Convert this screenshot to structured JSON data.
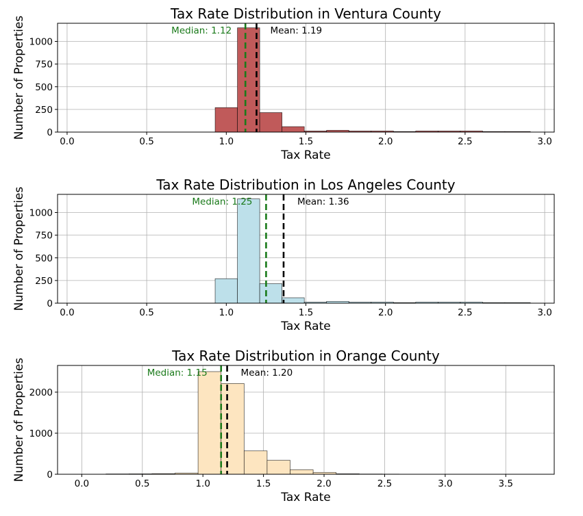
{
  "chart_data": [
    {
      "type": "bar",
      "title": "Tax Rate Distribution in Ventura County",
      "xlabel": "Tax Rate",
      "ylabel": "Number of Properties",
      "xlim": [
        -0.06,
        3.06
      ],
      "ylim": [
        0,
        1200
      ],
      "xticks": [
        0.0,
        0.5,
        1.0,
        1.5,
        2.0,
        2.5,
        3.0
      ],
      "xtick_labels": [
        "0.0",
        "0.5",
        "1.0",
        "1.5",
        "2.0",
        "2.5",
        "3.0"
      ],
      "yticks": [
        0,
        250,
        500,
        750,
        1000
      ],
      "ytick_labels": [
        "0",
        "250",
        "500",
        "750",
        "1000"
      ],
      "grid": true,
      "bar_color": "#c05a5a",
      "bins": [
        {
          "x0": 0.93,
          "x1": 1.07,
          "count": 270
        },
        {
          "x0": 1.07,
          "x1": 1.21,
          "count": 1150
        },
        {
          "x0": 1.21,
          "x1": 1.35,
          "count": 215
        },
        {
          "x0": 1.35,
          "x1": 1.49,
          "count": 60
        },
        {
          "x0": 1.49,
          "x1": 1.63,
          "count": 12
        },
        {
          "x0": 1.63,
          "x1": 1.77,
          "count": 20
        },
        {
          "x0": 1.77,
          "x1": 1.91,
          "count": 12
        },
        {
          "x0": 1.91,
          "x1": 2.05,
          "count": 12
        },
        {
          "x0": 2.05,
          "x1": 2.19,
          "count": 6
        },
        {
          "x0": 2.19,
          "x1": 2.33,
          "count": 12
        },
        {
          "x0": 2.33,
          "x1": 2.47,
          "count": 12
        },
        {
          "x0": 2.47,
          "x1": 2.61,
          "count": 12
        },
        {
          "x0": 2.61,
          "x1": 2.75,
          "count": 6
        },
        {
          "x0": 2.75,
          "x1": 2.91,
          "count": 6
        }
      ],
      "median": {
        "value": 1.12,
        "label": "Median: 1.12",
        "color": "#1a7a1a"
      },
      "mean": {
        "value": 1.19,
        "label": "Mean: 1.19",
        "color": "#000000"
      }
    },
    {
      "type": "bar",
      "title": "Tax Rate Distribution in Los Angeles County",
      "xlabel": "Tax Rate",
      "ylabel": "Number of Properties",
      "xlim": [
        -0.06,
        3.06
      ],
      "ylim": [
        0,
        1200
      ],
      "xticks": [
        0.0,
        0.5,
        1.0,
        1.5,
        2.0,
        2.5,
        3.0
      ],
      "xtick_labels": [
        "0.0",
        "0.5",
        "1.0",
        "1.5",
        "2.0",
        "2.5",
        "3.0"
      ],
      "yticks": [
        0,
        250,
        500,
        750,
        1000
      ],
      "ytick_labels": [
        "0",
        "250",
        "500",
        "750",
        "1000"
      ],
      "grid": true,
      "bar_color": "#bde0ea",
      "bins": [
        {
          "x0": 0.93,
          "x1": 1.07,
          "count": 270
        },
        {
          "x0": 1.07,
          "x1": 1.21,
          "count": 1150
        },
        {
          "x0": 1.21,
          "x1": 1.35,
          "count": 215
        },
        {
          "x0": 1.35,
          "x1": 1.49,
          "count": 60
        },
        {
          "x0": 1.49,
          "x1": 1.63,
          "count": 12
        },
        {
          "x0": 1.63,
          "x1": 1.77,
          "count": 20
        },
        {
          "x0": 1.77,
          "x1": 1.91,
          "count": 12
        },
        {
          "x0": 1.91,
          "x1": 2.05,
          "count": 12
        },
        {
          "x0": 2.05,
          "x1": 2.19,
          "count": 6
        },
        {
          "x0": 2.19,
          "x1": 2.33,
          "count": 12
        },
        {
          "x0": 2.33,
          "x1": 2.47,
          "count": 12
        },
        {
          "x0": 2.47,
          "x1": 2.61,
          "count": 12
        },
        {
          "x0": 2.61,
          "x1": 2.75,
          "count": 6
        },
        {
          "x0": 2.75,
          "x1": 2.91,
          "count": 6
        }
      ],
      "median": {
        "value": 1.25,
        "label": "Median: 1.25",
        "color": "#1a7a1a"
      },
      "mean": {
        "value": 1.36,
        "label": "Mean: 1.36",
        "color": "#000000"
      }
    },
    {
      "type": "bar",
      "title": "Tax Rate Distribution in Orange County",
      "xlabel": "Tax Rate",
      "ylabel": "Number of Properties",
      "xlim": [
        -0.2,
        3.9
      ],
      "ylim": [
        0,
        2650
      ],
      "xticks": [
        0.0,
        0.5,
        1.0,
        1.5,
        2.0,
        2.5,
        3.0,
        3.5
      ],
      "xtick_labels": [
        "0.0",
        "0.5",
        "1.0",
        "1.5",
        "2.0",
        "2.5",
        "3.0",
        "3.5"
      ],
      "yticks": [
        0,
        1000,
        2000
      ],
      "ytick_labels": [
        "0",
        "1000",
        "2000"
      ],
      "grid": true,
      "bar_color": "#fde5c0",
      "bins": [
        {
          "x0": 0.2,
          "x1": 0.39,
          "count": 8
        },
        {
          "x0": 0.39,
          "x1": 0.58,
          "count": 10
        },
        {
          "x0": 0.58,
          "x1": 0.77,
          "count": 15
        },
        {
          "x0": 0.77,
          "x1": 0.96,
          "count": 30
        },
        {
          "x0": 0.96,
          "x1": 1.15,
          "count": 2500
        },
        {
          "x0": 1.15,
          "x1": 1.34,
          "count": 2210
        },
        {
          "x0": 1.34,
          "x1": 1.53,
          "count": 570
        },
        {
          "x0": 1.53,
          "x1": 1.72,
          "count": 340
        },
        {
          "x0": 1.72,
          "x1": 1.91,
          "count": 110
        },
        {
          "x0": 1.91,
          "x1": 2.1,
          "count": 45
        },
        {
          "x0": 2.1,
          "x1": 2.29,
          "count": 12
        },
        {
          "x0": 2.29,
          "x1": 2.48,
          "count": 6
        },
        {
          "x0": 2.48,
          "x1": 2.62,
          "count": 4
        }
      ],
      "median": {
        "value": 1.15,
        "label": "Median: 1.15",
        "color": "#1a7a1a"
      },
      "mean": {
        "value": 1.2,
        "label": "Mean: 1.20",
        "color": "#000000"
      }
    }
  ]
}
